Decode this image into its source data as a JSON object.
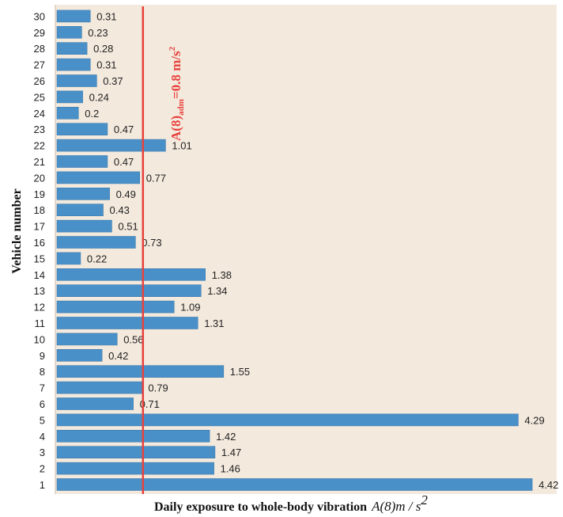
{
  "chart_data": {
    "type": "bar",
    "orientation": "horizontal",
    "xlabel": "Daily exposure to whole-body vibration",
    "xlabel_math": "A(8)m / s",
    "xlabel_math_sup": "2",
    "ylabel": "Vehicle number",
    "categories": [
      "1",
      "2",
      "3",
      "4",
      "5",
      "6",
      "7",
      "8",
      "9",
      "10",
      "11",
      "12",
      "13",
      "14",
      "15",
      "16",
      "17",
      "18",
      "19",
      "20",
      "21",
      "22",
      "23",
      "24",
      "25",
      "26",
      "27",
      "28",
      "29",
      "30"
    ],
    "values": [
      4.42,
      1.46,
      1.47,
      1.42,
      4.29,
      0.71,
      0.79,
      1.55,
      0.42,
      0.56,
      1.31,
      1.09,
      1.34,
      1.38,
      0.22,
      0.73,
      0.51,
      0.43,
      0.49,
      0.77,
      0.47,
      1.01,
      0.47,
      0.2,
      0.24,
      0.37,
      0.31,
      0.28,
      0.23,
      0.31
    ],
    "value_labels": [
      "4.42",
      "1.46",
      "1.47",
      "1.42",
      "4.29",
      "0.71",
      "0.79",
      "1.55",
      "0.42",
      "0.56",
      "1.31",
      "1.09",
      "1.34",
      "1.38",
      "0.22",
      "0.73",
      "0.51",
      "0.43",
      "0.49",
      "0.77",
      "0.47",
      "1.01",
      "0.47",
      "0.2",
      "0.24",
      "0.37",
      "0.31",
      "0.28",
      "0.23",
      "0.31"
    ],
    "xlim": [
      0,
      4.5
    ],
    "reference_line": {
      "value": 0.8,
      "label_main": "A(8)",
      "label_sub": "adm",
      "label_rest": "=0.8 m/s",
      "label_sup": "2",
      "color": "#e8413c"
    },
    "colors": {
      "bar": "#4a90c8",
      "bar_edge": "#3c7cb0",
      "plot_background": "#f3e9dd",
      "axis": "#c9b9a6"
    },
    "grid": false,
    "legend": "none"
  }
}
